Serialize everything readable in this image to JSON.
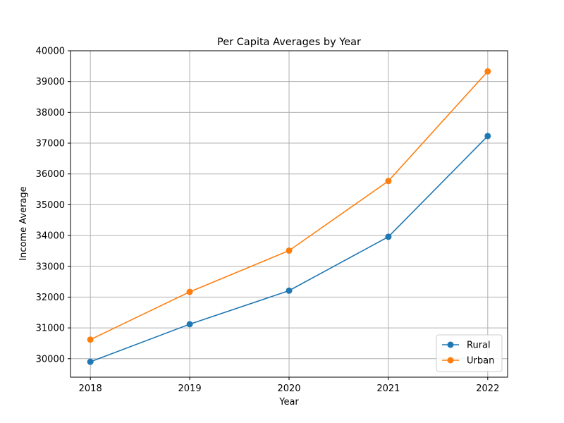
{
  "chart_data": {
    "type": "line",
    "title": "Per Capita Averages by Year",
    "xlabel": "Year",
    "ylabel": "Income Average",
    "x": [
      2018,
      2019,
      2020,
      2021,
      2022
    ],
    "xticks": [
      "2018",
      "2019",
      "2020",
      "2021",
      "2022"
    ],
    "ylim": [
      29400,
      40000
    ],
    "yticks": [
      30000,
      31000,
      32000,
      33000,
      34000,
      35000,
      36000,
      37000,
      38000,
      39000,
      40000
    ],
    "grid": true,
    "legend_position": "lower-right",
    "series": [
      {
        "name": "Rural",
        "color": "#1f77b4",
        "marker": "circle",
        "values": [
          29900,
          31120,
          32210,
          33960,
          37230
        ]
      },
      {
        "name": "Urban",
        "color": "#ff7f0e",
        "marker": "circle",
        "values": [
          30620,
          32170,
          33510,
          35770,
          39330
        ]
      }
    ]
  }
}
